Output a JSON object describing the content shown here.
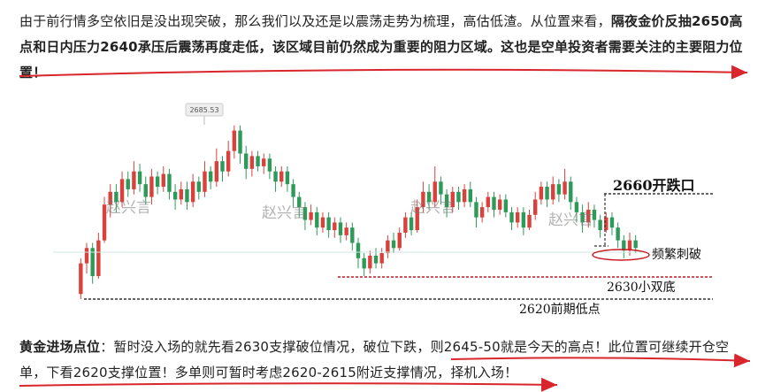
{
  "intro": {
    "text1": "由于前行情多空依旧是没出现突破，那么我们以及还是以震荡走势为梳理，高估低渣。从位置来看，",
    "bold1": "隔夜金价反抽2650高点和日内压力2640承压后震荡再度走低，该区域目前仍然成为重要的阻力区域。这也是空单投资者需要关注的主要阻力位置！"
  },
  "chart": {
    "peak_label": "2685.53",
    "watermarks": [
      "赵兴言",
      "赵兴言",
      "赵兴言",
      "赵兴言"
    ],
    "annotations": {
      "open_drop": "2660开跌口",
      "frequent_break": "频繁刺破",
      "small_double_bottom": "2630小双底",
      "prior_low": "2620前期低点"
    }
  },
  "chart_data": {
    "type": "candlestick",
    "title": "",
    "colors": {
      "up": "#d9423c",
      "down": "#2e9a5a"
    },
    "peak_marker": 2685.53,
    "candles": [
      [
        2620,
        2632,
        2618,
        2634
      ],
      [
        2632,
        2638,
        2628,
        2640
      ],
      [
        2638,
        2627,
        2624,
        2640
      ],
      [
        2627,
        2641,
        2626,
        2644
      ],
      [
        2641,
        2655,
        2640,
        2658
      ],
      [
        2655,
        2660,
        2650,
        2663
      ],
      [
        2660,
        2656,
        2652,
        2663
      ],
      [
        2656,
        2665,
        2654,
        2668
      ],
      [
        2665,
        2661,
        2658,
        2668
      ],
      [
        2661,
        2668,
        2659,
        2672
      ],
      [
        2668,
        2663,
        2660,
        2671
      ],
      [
        2663,
        2658,
        2655,
        2666
      ],
      [
        2658,
        2666,
        2655,
        2669
      ],
      [
        2666,
        2662,
        2659,
        2668
      ],
      [
        2662,
        2667,
        2660,
        2670
      ],
      [
        2667,
        2660,
        2657,
        2669
      ],
      [
        2660,
        2657,
        2653,
        2663
      ],
      [
        2657,
        2661,
        2655,
        2664
      ],
      [
        2661,
        2656,
        2653,
        2664
      ],
      [
        2656,
        2664,
        2654,
        2667
      ],
      [
        2664,
        2660,
        2657,
        2666
      ],
      [
        2660,
        2668,
        2658,
        2672
      ],
      [
        2668,
        2664,
        2661,
        2670
      ],
      [
        2664,
        2672,
        2662,
        2677
      ],
      [
        2672,
        2668,
        2664,
        2674
      ],
      [
        2668,
        2676,
        2666,
        2680
      ],
      [
        2676,
        2684,
        2673,
        2686
      ],
      [
        2684,
        2675,
        2671,
        2686
      ],
      [
        2675,
        2669,
        2665,
        2678
      ],
      [
        2669,
        2674,
        2666,
        2676
      ],
      [
        2674,
        2670,
        2668,
        2676
      ],
      [
        2670,
        2673,
        2667,
        2675
      ],
      [
        2673,
        2668,
        2665,
        2675
      ],
      [
        2668,
        2664,
        2660,
        2670
      ],
      [
        2664,
        2668,
        2662,
        2670
      ],
      [
        2668,
        2663,
        2660,
        2670
      ],
      [
        2663,
        2658,
        2654,
        2665
      ],
      [
        2658,
        2654,
        2650,
        2660
      ],
      [
        2654,
        2649,
        2645,
        2656
      ],
      [
        2649,
        2652,
        2647,
        2655
      ],
      [
        2652,
        2646,
        2643,
        2654
      ],
      [
        2646,
        2650,
        2644,
        2652
      ],
      [
        2650,
        2645,
        2642,
        2652
      ],
      [
        2645,
        2648,
        2642,
        2650
      ],
      [
        2648,
        2643,
        2640,
        2650
      ],
      [
        2643,
        2646,
        2641,
        2648
      ],
      [
        2646,
        2640,
        2637,
        2648
      ],
      [
        2640,
        2634,
        2630,
        2642
      ],
      [
        2634,
        2630,
        2627,
        2636
      ],
      [
        2630,
        2635,
        2628,
        2637
      ],
      [
        2635,
        2632,
        2630,
        2638
      ],
      [
        2632,
        2636,
        2630,
        2638
      ],
      [
        2636,
        2641,
        2634,
        2643
      ],
      [
        2641,
        2638,
        2636,
        2644
      ],
      [
        2638,
        2644,
        2637,
        2646
      ],
      [
        2644,
        2650,
        2642,
        2652
      ],
      [
        2650,
        2645,
        2643,
        2652
      ],
      [
        2645,
        2654,
        2644,
        2657
      ],
      [
        2654,
        2660,
        2652,
        2664
      ],
      [
        2660,
        2656,
        2653,
        2663
      ],
      [
        2656,
        2664,
        2654,
        2670
      ],
      [
        2664,
        2659,
        2655,
        2666
      ],
      [
        2659,
        2654,
        2650,
        2661
      ],
      [
        2654,
        2660,
        2652,
        2662
      ],
      [
        2660,
        2656,
        2653,
        2662
      ],
      [
        2656,
        2661,
        2654,
        2663
      ],
      [
        2661,
        2656,
        2654,
        2664
      ],
      [
        2656,
        2650,
        2646,
        2658
      ],
      [
        2650,
        2654,
        2648,
        2656
      ],
      [
        2654,
        2658,
        2652,
        2660
      ],
      [
        2658,
        2653,
        2650,
        2660
      ],
      [
        2653,
        2657,
        2651,
        2659
      ],
      [
        2657,
        2652,
        2650,
        2659
      ],
      [
        2652,
        2648,
        2645,
        2654
      ],
      [
        2648,
        2652,
        2646,
        2654
      ],
      [
        2652,
        2646,
        2643,
        2654
      ],
      [
        2646,
        2651,
        2645,
        2653
      ],
      [
        2651,
        2657,
        2649,
        2660
      ],
      [
        2657,
        2662,
        2655,
        2664
      ],
      [
        2662,
        2657,
        2654,
        2664
      ],
      [
        2657,
        2663,
        2655,
        2666
      ],
      [
        2663,
        2659,
        2656,
        2665
      ],
      [
        2659,
        2664,
        2657,
        2669
      ],
      [
        2664,
        2656,
        2653,
        2666
      ],
      [
        2656,
        2652,
        2648,
        2658
      ],
      [
        2652,
        2648,
        2644,
        2655
      ],
      [
        2648,
        2653,
        2646,
        2656
      ],
      [
        2653,
        2649,
        2646,
        2655
      ],
      [
        2649,
        2645,
        2642,
        2651
      ],
      [
        2645,
        2650,
        2644,
        2652
      ],
      [
        2650,
        2646,
        2643,
        2652
      ],
      [
        2646,
        2641,
        2638,
        2648
      ],
      [
        2641,
        2637,
        2634,
        2643
      ],
      [
        2637,
        2641,
        2635,
        2644
      ],
      [
        2641,
        2638,
        2636,
        2643
      ]
    ],
    "levels": [
      {
        "label": "2660开跌口",
        "value": 2660
      },
      {
        "label": "频繁刺破",
        "value": 2637
      },
      {
        "label": "2630小双底",
        "value": 2630
      },
      {
        "label": "2620前期低点",
        "value": 2620
      }
    ]
  },
  "trade": {
    "label": "黄金进场点位",
    "text": "：暂时没入场的就先看2630支撑破位情况，破位下跌，则2645-50就是今天的高点！此位置可继续开仓空单，下看2620支撑位置！多单则可暂时考虑2620-2615附近支撑情况，择机入场！"
  }
}
